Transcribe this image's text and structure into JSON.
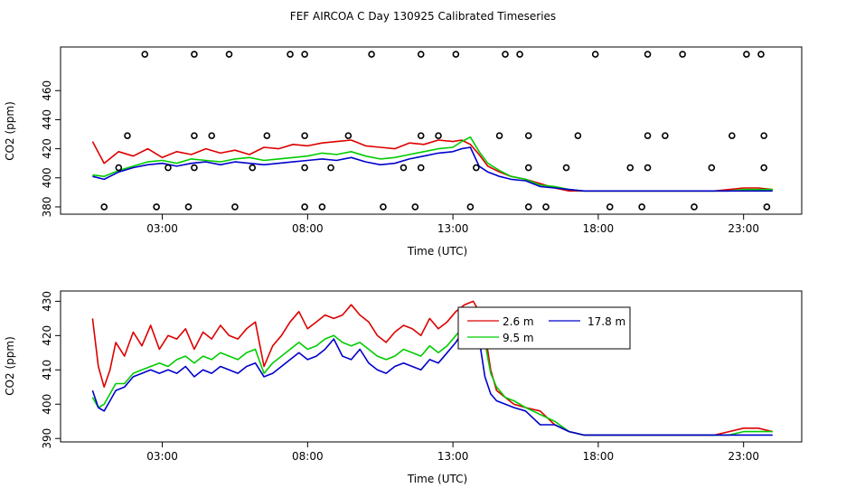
{
  "title": "FEF AIRCOA C  Day 130925  Calibrated Timeseries",
  "colors": {
    "s1": "#dd0000",
    "s2": "#00cc00",
    "s3": "#0000cc",
    "axis": "#000000"
  },
  "chart_data": [
    {
      "type": "line",
      "xlabel": "Time (UTC)",
      "ylabel": "CO2 (ppm)",
      "xlim": [
        -0.5,
        25
      ],
      "ylim": [
        375,
        490
      ],
      "xticks": [
        3,
        8,
        13,
        18,
        23
      ],
      "xtick_labels": [
        "03:00",
        "08:00",
        "13:00",
        "18:00",
        "23:00"
      ],
      "yticks": [
        380,
        400,
        420,
        440,
        460
      ],
      "ytick_labels": [
        "380",
        "400",
        "420",
        "440",
        "460"
      ],
      "series": [
        {
          "name": "2.6 m",
          "color": "#dd0000",
          "x": [
            0.6,
            1.0,
            1.5,
            2.0,
            2.5,
            3.0,
            3.5,
            4.0,
            4.5,
            5.0,
            5.5,
            6.0,
            6.5,
            7.0,
            7.5,
            8.0,
            8.5,
            9.0,
            9.5,
            10.0,
            10.5,
            11.0,
            11.5,
            12.0,
            12.5,
            13.0,
            13.3,
            13.6,
            13.9,
            14.2,
            14.6,
            15.0,
            15.5,
            16.0,
            16.5,
            17.0,
            17.5,
            18.0,
            19.0,
            20.0,
            21.0,
            22.0,
            22.5,
            23.0,
            23.5,
            24.0
          ],
          "y": [
            425,
            410,
            418,
            415,
            420,
            414,
            418,
            416,
            420,
            417,
            419,
            416,
            421,
            420,
            423,
            422,
            424,
            425,
            426,
            422,
            421,
            420,
            424,
            423,
            426,
            425,
            426,
            423,
            416,
            408,
            404,
            401,
            399,
            396,
            393,
            391,
            391,
            391,
            391,
            391,
            391,
            391,
            392,
            393,
            393,
            392
          ]
        },
        {
          "name": "9.5 m",
          "color": "#00cc00",
          "x": [
            0.6,
            1.0,
            1.5,
            2.0,
            2.5,
            3.0,
            3.5,
            4.0,
            4.5,
            5.0,
            5.5,
            6.0,
            6.5,
            7.0,
            7.5,
            8.0,
            8.5,
            9.0,
            9.5,
            10.0,
            10.5,
            11.0,
            11.5,
            12.0,
            12.5,
            13.0,
            13.3,
            13.6,
            13.9,
            14.2,
            14.6,
            15.0,
            15.5,
            16.0,
            16.5,
            17.0,
            17.5,
            18.0,
            19.0,
            20.0,
            21.0,
            22.0,
            22.5,
            23.0,
            23.5,
            24.0
          ],
          "y": [
            402,
            401,
            405,
            408,
            411,
            412,
            410,
            413,
            412,
            411,
            413,
            414,
            412,
            413,
            414,
            415,
            417,
            416,
            418,
            415,
            413,
            414,
            416,
            418,
            420,
            421,
            425,
            428,
            418,
            410,
            405,
            401,
            399,
            395,
            394,
            392,
            391,
            391,
            391,
            391,
            391,
            391,
            391,
            392,
            392,
            392
          ]
        },
        {
          "name": "17.8 m",
          "color": "#0000cc",
          "x": [
            0.6,
            1.0,
            1.5,
            2.0,
            2.5,
            3.0,
            3.5,
            4.0,
            4.5,
            5.0,
            5.5,
            6.0,
            6.5,
            7.0,
            7.5,
            8.0,
            8.5,
            9.0,
            9.5,
            10.0,
            10.5,
            11.0,
            11.5,
            12.0,
            12.5,
            13.0,
            13.3,
            13.6,
            13.9,
            14.2,
            14.6,
            15.0,
            15.5,
            16.0,
            16.5,
            17.0,
            17.5,
            18.0,
            19.0,
            20.0,
            21.0,
            22.0,
            22.5,
            23.0,
            23.5,
            24.0
          ],
          "y": [
            401,
            399,
            404,
            407,
            409,
            410,
            408,
            410,
            411,
            409,
            411,
            410,
            409,
            410,
            411,
            412,
            413,
            412,
            414,
            411,
            409,
            410,
            413,
            415,
            417,
            418,
            420,
            421,
            408,
            404,
            401,
            399,
            398,
            394,
            393,
            392,
            391,
            391,
            391,
            391,
            391,
            391,
            391,
            391,
            391,
            391
          ]
        }
      ],
      "scatter": {
        "name": "samples",
        "marker": "open-circle",
        "x": [
          2.4,
          4.1,
          5.3,
          7.4,
          7.9,
          10.2,
          11.9,
          13.1,
          14.8,
          15.3,
          17.9,
          19.7,
          20.9,
          23.1,
          23.6,
          1.8,
          4.1,
          4.7,
          6.6,
          7.9,
          9.4,
          11.9,
          12.5,
          14.6,
          15.6,
          17.3,
          19.7,
          20.3,
          22.6,
          23.7,
          1.5,
          3.2,
          4.1,
          6.1,
          7.9,
          8.8,
          11.3,
          11.9,
          13.8,
          15.6,
          16.9,
          19.1,
          19.7,
          21.9,
          23.7,
          1.0,
          2.8,
          3.9,
          5.5,
          7.9,
          8.5,
          10.6,
          11.7,
          13.6,
          15.6,
          16.2,
          18.4,
          19.5,
          21.3,
          23.8
        ],
        "y": [
          485,
          485,
          485,
          485,
          485,
          485,
          485,
          485,
          485,
          485,
          485,
          485,
          485,
          485,
          485,
          429,
          429,
          429,
          429,
          429,
          429,
          429,
          429,
          429,
          429,
          429,
          429,
          429,
          429,
          429,
          407,
          407,
          407,
          407,
          407,
          407,
          407,
          407,
          407,
          407,
          407,
          407,
          407,
          407,
          407,
          380,
          380,
          380,
          380,
          380,
          380,
          380,
          380,
          380,
          380,
          380,
          380,
          380,
          380,
          380
        ]
      }
    },
    {
      "type": "line",
      "xlabel": "Time (UTC)",
      "ylabel": "CO2 (ppm)",
      "xlim": [
        -0.5,
        25
      ],
      "ylim": [
        389,
        433
      ],
      "xticks": [
        3,
        8,
        13,
        18,
        23
      ],
      "xtick_labels": [
        "03:00",
        "08:00",
        "13:00",
        "18:00",
        "23:00"
      ],
      "yticks": [
        390,
        400,
        410,
        420,
        430
      ],
      "ytick_labels": [
        "390",
        "400",
        "410",
        "420",
        "430"
      ],
      "legend": {
        "position": "top-center",
        "entries": [
          "2.6 m",
          "17.8 m",
          "9.5 m"
        ]
      },
      "series": [
        {
          "name": "2.6 m",
          "color": "#dd0000",
          "x": [
            0.6,
            0.8,
            1.0,
            1.2,
            1.4,
            1.7,
            2.0,
            2.3,
            2.6,
            2.9,
            3.2,
            3.5,
            3.8,
            4.1,
            4.4,
            4.7,
            5.0,
            5.3,
            5.6,
            5.9,
            6.2,
            6.5,
            6.8,
            7.1,
            7.4,
            7.7,
            8.0,
            8.3,
            8.6,
            8.9,
            9.2,
            9.5,
            9.8,
            10.1,
            10.4,
            10.7,
            11.0,
            11.3,
            11.6,
            11.9,
            12.2,
            12.5,
            12.8,
            13.1,
            13.4,
            13.7,
            13.9,
            14.1,
            14.3,
            14.5,
            14.8,
            15.1,
            15.5,
            16.0,
            16.5,
            17.0,
            17.5,
            18.0,
            19.0,
            20.0,
            21.0,
            22.0,
            22.5,
            23.0,
            23.5,
            24.0
          ],
          "y": [
            425,
            411,
            405,
            410,
            418,
            414,
            421,
            417,
            423,
            416,
            420,
            419,
            422,
            416,
            421,
            419,
            423,
            420,
            419,
            422,
            424,
            411,
            417,
            420,
            424,
            427,
            422,
            424,
            426,
            425,
            426,
            429,
            426,
            424,
            420,
            418,
            421,
            423,
            422,
            420,
            425,
            422,
            424,
            427,
            429,
            430,
            427,
            421,
            410,
            404,
            402,
            400,
            399,
            398,
            394,
            392,
            391,
            391,
            391,
            391,
            391,
            391,
            392,
            393,
            393,
            392
          ]
        },
        {
          "name": "9.5 m",
          "color": "#00cc00",
          "x": [
            0.6,
            0.8,
            1.0,
            1.2,
            1.4,
            1.7,
            2.0,
            2.3,
            2.6,
            2.9,
            3.2,
            3.5,
            3.8,
            4.1,
            4.4,
            4.7,
            5.0,
            5.3,
            5.6,
            5.9,
            6.2,
            6.5,
            6.8,
            7.1,
            7.4,
            7.7,
            8.0,
            8.3,
            8.6,
            8.9,
            9.2,
            9.5,
            9.8,
            10.1,
            10.4,
            10.7,
            11.0,
            11.3,
            11.6,
            11.9,
            12.2,
            12.5,
            12.8,
            13.1,
            13.4,
            13.7,
            13.9,
            14.1,
            14.3,
            14.5,
            14.8,
            15.1,
            15.5,
            16.0,
            16.5,
            17.0,
            17.5,
            18.0,
            19.0,
            20.0,
            21.0,
            22.0,
            22.5,
            23.0,
            23.5,
            24.0
          ],
          "y": [
            402,
            399,
            400,
            403,
            406,
            406,
            409,
            410,
            411,
            412,
            411,
            413,
            414,
            412,
            414,
            413,
            415,
            414,
            413,
            415,
            416,
            409,
            412,
            414,
            416,
            418,
            416,
            417,
            419,
            420,
            418,
            417,
            418,
            416,
            414,
            413,
            414,
            416,
            415,
            414,
            417,
            415,
            417,
            420,
            423,
            426,
            428,
            418,
            409,
            405,
            402,
            401,
            399,
            397,
            395,
            392,
            391,
            391,
            391,
            391,
            391,
            391,
            391,
            392,
            392,
            392
          ]
        },
        {
          "name": "17.8 m",
          "color": "#0000cc",
          "x": [
            0.6,
            0.8,
            1.0,
            1.2,
            1.4,
            1.7,
            2.0,
            2.3,
            2.6,
            2.9,
            3.2,
            3.5,
            3.8,
            4.1,
            4.4,
            4.7,
            5.0,
            5.3,
            5.6,
            5.9,
            6.2,
            6.5,
            6.8,
            7.1,
            7.4,
            7.7,
            8.0,
            8.3,
            8.6,
            8.9,
            9.2,
            9.5,
            9.8,
            10.1,
            10.4,
            10.7,
            11.0,
            11.3,
            11.6,
            11.9,
            12.2,
            12.5,
            12.8,
            13.1,
            13.4,
            13.7,
            13.9,
            14.1,
            14.3,
            14.5,
            14.8,
            15.1,
            15.5,
            16.0,
            16.5,
            17.0,
            17.5,
            18.0,
            19.0,
            20.0,
            21.0,
            22.0,
            22.5,
            23.0,
            23.5,
            24.0
          ],
          "y": [
            404,
            399,
            398,
            401,
            404,
            405,
            408,
            409,
            410,
            409,
            410,
            409,
            411,
            408,
            410,
            409,
            411,
            410,
            409,
            411,
            412,
            408,
            409,
            411,
            413,
            415,
            413,
            414,
            416,
            419,
            414,
            413,
            416,
            412,
            410,
            409,
            411,
            412,
            411,
            410,
            413,
            412,
            415,
            418,
            422,
            418,
            419,
            408,
            403,
            401,
            400,
            399,
            398,
            394,
            394,
            392,
            391,
            391,
            391,
            391,
            391,
            391,
            391,
            391,
            391,
            391
          ]
        }
      ]
    }
  ]
}
